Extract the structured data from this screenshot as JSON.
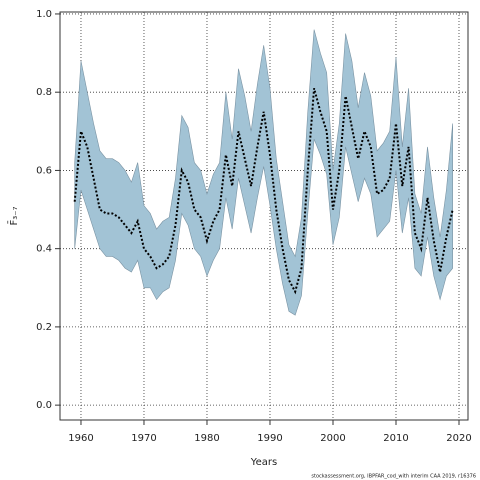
{
  "chart_data": {
    "type": "line_band",
    "xlabel": "Years",
    "ylabel": "F̄₃₋₇",
    "footer": "stockassessment.org, IBPFAR_cod_with interim CAA 2019, r16376",
    "x": [
      1959,
      1960,
      1961,
      1962,
      1963,
      1964,
      1965,
      1966,
      1967,
      1968,
      1969,
      1970,
      1971,
      1972,
      1973,
      1974,
      1975,
      1976,
      1977,
      1978,
      1979,
      1980,
      1981,
      1982,
      1983,
      1984,
      1985,
      1986,
      1987,
      1988,
      1989,
      1990,
      1991,
      1992,
      1993,
      1994,
      1995,
      1996,
      1997,
      1998,
      1999,
      2000,
      2001,
      2002,
      2003,
      2004,
      2005,
      2006,
      2007,
      2008,
      2009,
      2010,
      2011,
      2012,
      2013,
      2014,
      2015,
      2016,
      2017,
      2018,
      2019
    ],
    "series": [
      {
        "color": "#000000",
        "band_color": "#a2c3d5",
        "values": [
          0.52,
          0.7,
          0.66,
          0.58,
          0.5,
          0.49,
          0.49,
          0.48,
          0.46,
          0.44,
          0.47,
          0.4,
          0.38,
          0.35,
          0.36,
          0.38,
          0.46,
          0.6,
          0.57,
          0.5,
          0.48,
          0.42,
          0.47,
          0.5,
          0.64,
          0.56,
          0.7,
          0.63,
          0.56,
          0.66,
          0.75,
          0.64,
          0.5,
          0.4,
          0.32,
          0.29,
          0.35,
          0.6,
          0.81,
          0.75,
          0.7,
          0.5,
          0.6,
          0.79,
          0.71,
          0.63,
          0.7,
          0.66,
          0.54,
          0.55,
          0.58,
          0.72,
          0.56,
          0.66,
          0.44,
          0.4,
          0.53,
          0.42,
          0.34,
          0.43,
          0.5
        ],
        "upper": [
          0.62,
          0.88,
          0.8,
          0.72,
          0.65,
          0.63,
          0.63,
          0.62,
          0.6,
          0.57,
          0.62,
          0.51,
          0.49,
          0.45,
          0.47,
          0.48,
          0.58,
          0.74,
          0.71,
          0.62,
          0.6,
          0.54,
          0.59,
          0.62,
          0.8,
          0.68,
          0.86,
          0.79,
          0.7,
          0.82,
          0.92,
          0.81,
          0.63,
          0.52,
          0.41,
          0.38,
          0.48,
          0.75,
          0.96,
          0.9,
          0.85,
          0.6,
          0.72,
          0.95,
          0.88,
          0.76,
          0.85,
          0.79,
          0.65,
          0.67,
          0.7,
          0.89,
          0.66,
          0.81,
          0.54,
          0.49,
          0.66,
          0.53,
          0.43,
          0.55,
          0.72
        ],
        "lower": [
          0.4,
          0.55,
          0.5,
          0.45,
          0.4,
          0.38,
          0.38,
          0.37,
          0.35,
          0.34,
          0.37,
          0.3,
          0.3,
          0.27,
          0.29,
          0.3,
          0.37,
          0.49,
          0.46,
          0.4,
          0.38,
          0.33,
          0.37,
          0.4,
          0.53,
          0.45,
          0.58,
          0.51,
          0.44,
          0.53,
          0.61,
          0.51,
          0.4,
          0.31,
          0.24,
          0.23,
          0.28,
          0.49,
          0.68,
          0.64,
          0.59,
          0.41,
          0.48,
          0.66,
          0.59,
          0.52,
          0.58,
          0.54,
          0.43,
          0.45,
          0.47,
          0.6,
          0.44,
          0.53,
          0.35,
          0.33,
          0.43,
          0.33,
          0.27,
          0.33,
          0.35
        ]
      }
    ],
    "xlim": [
      1956.67,
      2021.43
    ],
    "ylim": [
      -0.038,
      1.005
    ],
    "xticks": [
      1960,
      1970,
      1980,
      1990,
      2000,
      2010,
      2020
    ],
    "yticks": [
      {
        "value": 0,
        "label": "0.0"
      },
      0.2,
      0.4,
      0.6,
      0.8,
      {
        "value": 1,
        "label": "1.0"
      }
    ],
    "grid": true
  }
}
